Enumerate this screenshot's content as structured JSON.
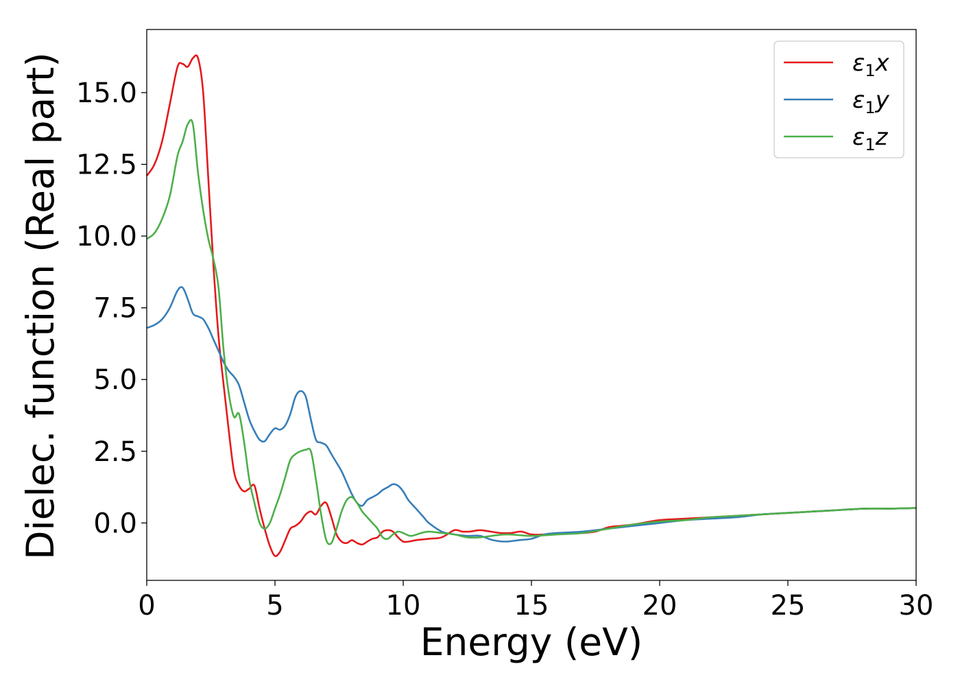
{
  "chart_data": {
    "type": "line",
    "xlabel": "Energy (eV)",
    "ylabel": "Dielec. function (Real part)",
    "xlim": [
      0,
      30
    ],
    "ylim": [
      -2.0,
      17.2
    ],
    "xticks": [
      0,
      5,
      10,
      15,
      20,
      25,
      30
    ],
    "xtick_labels": [
      "0",
      "5",
      "10",
      "15",
      "20",
      "25",
      "30"
    ],
    "yticks": [
      0,
      2.5,
      5,
      7.5,
      10,
      12.5,
      15
    ],
    "ytick_labels": [
      "0.0",
      "2.5",
      "5.0",
      "7.5",
      "10.0",
      "12.5",
      "15.0"
    ],
    "grid": false,
    "legend_position": "top-right",
    "series": [
      {
        "name": "ε₁x",
        "legend_label": "ε",
        "legend_sub": "1",
        "legend_tail": "x",
        "color": "#e41a1c",
        "x": [
          0,
          0.3,
          0.6,
          0.9,
          1.2,
          1.4,
          1.6,
          1.8,
          2.0,
          2.2,
          2.4,
          2.6,
          2.8,
          3.0,
          3.2,
          3.4,
          3.6,
          3.8,
          4.0,
          4.2,
          4.4,
          4.6,
          4.8,
          5.0,
          5.2,
          5.4,
          5.6,
          5.8,
          6.0,
          6.2,
          6.4,
          6.6,
          6.8,
          7.0,
          7.2,
          7.4,
          7.6,
          7.8,
          8.0,
          8.2,
          8.4,
          8.6,
          8.8,
          9.0,
          9.2,
          9.4,
          9.6,
          9.8,
          10.0,
          10.2,
          10.5,
          11.0,
          11.5,
          12.0,
          12.3,
          12.6,
          13.0,
          13.4,
          13.8,
          14.2,
          14.6,
          15.0,
          15.5,
          16.0,
          16.5,
          17.0,
          17.5,
          18.0,
          18.5,
          19.0,
          20.0,
          21.0,
          22.0,
          23.0,
          24.0,
          25.0,
          26.0,
          27.0,
          28.0,
          29.0,
          30.0
        ],
        "y": [
          12.1,
          12.5,
          13.3,
          14.6,
          15.9,
          16.0,
          15.9,
          16.2,
          16.2,
          15.0,
          12.0,
          9.0,
          6.5,
          4.8,
          3.2,
          1.8,
          1.3,
          1.1,
          1.2,
          1.3,
          0.5,
          -0.2,
          -0.8,
          -1.15,
          -1.0,
          -0.6,
          -0.2,
          -0.1,
          0.05,
          0.3,
          0.4,
          0.3,
          0.6,
          0.7,
          0.2,
          -0.4,
          -0.65,
          -0.7,
          -0.6,
          -0.7,
          -0.75,
          -0.65,
          -0.55,
          -0.5,
          -0.3,
          -0.25,
          -0.3,
          -0.5,
          -0.65,
          -0.65,
          -0.6,
          -0.55,
          -0.5,
          -0.25,
          -0.3,
          -0.3,
          -0.25,
          -0.3,
          -0.35,
          -0.35,
          -0.3,
          -0.4,
          -0.4,
          -0.35,
          -0.35,
          -0.35,
          -0.3,
          -0.15,
          -0.1,
          -0.05,
          0.1,
          0.15,
          0.2,
          0.25,
          0.3,
          0.35,
          0.4,
          0.45,
          0.5,
          0.5,
          0.52
        ]
      },
      {
        "name": "ε₁y",
        "legend_label": "ε",
        "legend_sub": "1",
        "legend_tail": "y",
        "color": "#377eb8",
        "x": [
          0,
          0.3,
          0.6,
          0.9,
          1.2,
          1.4,
          1.6,
          1.8,
          2.0,
          2.2,
          2.4,
          2.6,
          2.8,
          3.0,
          3.2,
          3.4,
          3.6,
          3.8,
          4.0,
          4.2,
          4.4,
          4.6,
          4.8,
          5.0,
          5.2,
          5.4,
          5.6,
          5.8,
          6.0,
          6.2,
          6.4,
          6.6,
          6.8,
          7.0,
          7.2,
          7.4,
          7.6,
          7.8,
          8.0,
          8.2,
          8.4,
          8.6,
          8.8,
          9.0,
          9.2,
          9.4,
          9.6,
          9.8,
          10.0,
          10.2,
          10.5,
          10.8,
          11.0,
          11.5,
          12.0,
          12.5,
          13.0,
          13.5,
          14.0,
          14.5,
          15.0,
          15.5,
          16.0,
          17.0,
          18.0,
          19.0,
          20.0,
          21.0,
          22.0,
          23.0,
          24.0,
          25.0,
          26.0,
          27.0,
          28.0,
          29.0,
          30.0
        ],
        "y": [
          6.8,
          6.9,
          7.1,
          7.5,
          8.1,
          8.2,
          7.8,
          7.3,
          7.2,
          7.1,
          6.8,
          6.4,
          6.0,
          5.6,
          5.3,
          5.1,
          4.8,
          4.2,
          3.6,
          3.2,
          2.9,
          2.85,
          3.1,
          3.3,
          3.25,
          3.4,
          3.8,
          4.4,
          4.6,
          4.4,
          3.6,
          2.9,
          2.8,
          2.7,
          2.4,
          2.1,
          1.8,
          1.4,
          1.0,
          0.7,
          0.6,
          0.8,
          0.9,
          1.0,
          1.15,
          1.25,
          1.35,
          1.3,
          1.1,
          0.8,
          0.5,
          0.2,
          0.0,
          -0.3,
          -0.4,
          -0.45,
          -0.45,
          -0.6,
          -0.65,
          -0.6,
          -0.55,
          -0.4,
          -0.35,
          -0.3,
          -0.2,
          -0.1,
          0.0,
          0.1,
          0.15,
          0.2,
          0.3,
          0.35,
          0.4,
          0.45,
          0.5,
          0.5,
          0.52
        ]
      },
      {
        "name": "ε₁z",
        "legend_label": "ε",
        "legend_sub": "1",
        "legend_tail": "z",
        "color": "#4daf4a",
        "x": [
          0,
          0.3,
          0.6,
          0.9,
          1.2,
          1.4,
          1.6,
          1.8,
          2.0,
          2.2,
          2.4,
          2.6,
          2.8,
          3.0,
          3.2,
          3.4,
          3.6,
          3.8,
          4.0,
          4.2,
          4.4,
          4.6,
          4.8,
          5.0,
          5.2,
          5.4,
          5.6,
          5.8,
          6.0,
          6.2,
          6.4,
          6.6,
          6.8,
          7.0,
          7.2,
          7.4,
          7.6,
          7.8,
          8.0,
          8.2,
          8.4,
          8.6,
          8.8,
          9.0,
          9.2,
          9.4,
          9.6,
          9.8,
          10.0,
          10.3,
          10.7,
          11.0,
          11.5,
          12.0,
          12.5,
          13.0,
          14.0,
          15.0,
          16.0,
          17.0,
          18.0,
          19.0,
          20.0,
          21.0,
          22.0,
          23.0,
          24.0,
          25.0,
          26.0,
          27.0,
          28.0,
          29.0,
          30.0
        ],
        "y": [
          9.9,
          10.1,
          10.6,
          11.4,
          12.8,
          13.3,
          13.9,
          13.9,
          12.2,
          10.9,
          9.9,
          9.2,
          8.2,
          6.0,
          4.5,
          3.7,
          3.8,
          2.8,
          1.5,
          0.7,
          0.0,
          -0.2,
          0.0,
          0.5,
          1.0,
          1.6,
          2.2,
          2.4,
          2.5,
          2.55,
          2.5,
          1.5,
          0.3,
          -0.6,
          -0.7,
          -0.2,
          0.4,
          0.8,
          0.9,
          0.7,
          0.4,
          0.2,
          0.0,
          -0.2,
          -0.5,
          -0.55,
          -0.4,
          -0.3,
          -0.35,
          -0.45,
          -0.35,
          -0.3,
          -0.35,
          -0.4,
          -0.5,
          -0.5,
          -0.4,
          -0.45,
          -0.4,
          -0.35,
          -0.2,
          -0.05,
          0.05,
          0.1,
          0.2,
          0.25,
          0.3,
          0.35,
          0.4,
          0.45,
          0.5,
          0.5,
          0.52
        ]
      }
    ]
  }
}
